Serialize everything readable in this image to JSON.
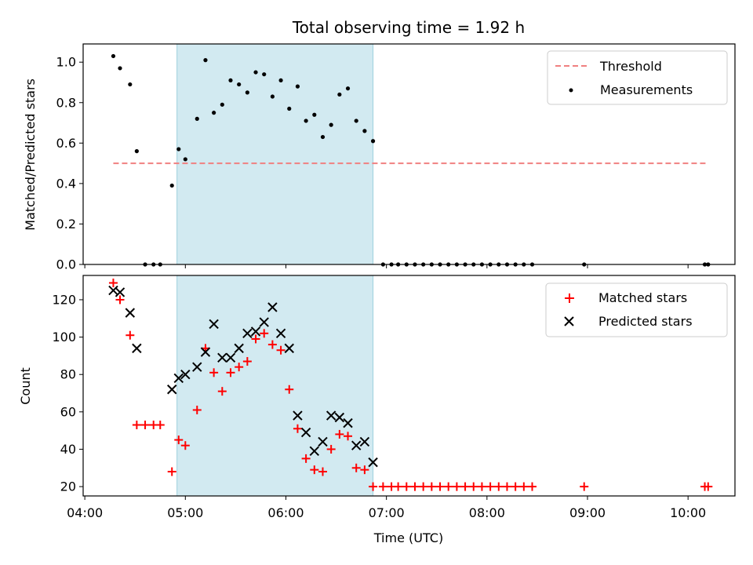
{
  "chart_data": [
    {
      "type": "scatter",
      "panel": "top",
      "title": "Total observing time = 1.92 h",
      "xlabel": "",
      "ylabel": "Matched/Predicted stars",
      "ylim": [
        0,
        1.09
      ],
      "yticks": [
        "0.0",
        "0.2",
        "0.4",
        "0.6",
        "0.8",
        "1.0"
      ],
      "shaded_span": [
        "04:55",
        "06:52"
      ],
      "threshold": {
        "name": "Threshold",
        "value": 0.5,
        "x_start": "04:17",
        "x_end": "10:12",
        "color": "#f08080"
      },
      "series": [
        {
          "name": "Measurements",
          "marker": "dot",
          "color": "#000000",
          "points": [
            [
              "04:17",
              1.03
            ],
            [
              "04:21",
              0.97
            ],
            [
              "04:27",
              0.89
            ],
            [
              "04:31",
              0.56
            ],
            [
              "04:36",
              0.0
            ],
            [
              "04:41",
              0.0
            ],
            [
              "04:45",
              0.0
            ],
            [
              "04:52",
              0.39
            ],
            [
              "04:56",
              0.57
            ],
            [
              "05:00",
              0.52
            ],
            [
              "05:07",
              0.72
            ],
            [
              "05:12",
              1.01
            ],
            [
              "05:17",
              0.75
            ],
            [
              "05:22",
              0.79
            ],
            [
              "05:27",
              0.91
            ],
            [
              "05:32",
              0.89
            ],
            [
              "05:37",
              0.85
            ],
            [
              "05:42",
              0.95
            ],
            [
              "05:47",
              0.94
            ],
            [
              "05:52",
              0.83
            ],
            [
              "05:57",
              0.91
            ],
            [
              "06:02",
              0.77
            ],
            [
              "06:07",
              0.88
            ],
            [
              "06:12",
              0.71
            ],
            [
              "06:17",
              0.74
            ],
            [
              "06:22",
              0.63
            ],
            [
              "06:27",
              0.69
            ],
            [
              "06:32",
              0.84
            ],
            [
              "06:37",
              0.87
            ],
            [
              "06:42",
              0.71
            ],
            [
              "06:47",
              0.66
            ],
            [
              "06:52",
              0.61
            ],
            [
              "06:58",
              0.0
            ],
            [
              "07:03",
              0.0
            ],
            [
              "07:07",
              0.0
            ],
            [
              "07:12",
              0.0
            ],
            [
              "07:17",
              0.0
            ],
            [
              "07:22",
              0.0
            ],
            [
              "07:27",
              0.0
            ],
            [
              "07:32",
              0.0
            ],
            [
              "07:37",
              0.0
            ],
            [
              "07:42",
              0.0
            ],
            [
              "07:47",
              0.0
            ],
            [
              "07:52",
              0.0
            ],
            [
              "07:57",
              0.0
            ],
            [
              "08:02",
              0.0
            ],
            [
              "08:07",
              0.0
            ],
            [
              "08:12",
              0.0
            ],
            [
              "08:17",
              0.0
            ],
            [
              "08:22",
              0.0
            ],
            [
              "08:27",
              0.0
            ],
            [
              "08:58",
              0.0
            ],
            [
              "10:10",
              0.0
            ],
            [
              "10:12",
              0.0
            ]
          ]
        }
      ],
      "legend": {
        "position": "upper right",
        "entries": [
          "Threshold",
          "Measurements"
        ]
      }
    },
    {
      "type": "scatter",
      "panel": "bottom",
      "title": "",
      "xlabel": "Time (UTC)",
      "ylabel": "Count",
      "ylim": [
        15,
        133
      ],
      "yticks": [
        "20",
        "40",
        "60",
        "80",
        "100",
        "120"
      ],
      "xticks": [
        "04:00",
        "05:00",
        "06:00",
        "07:00",
        "08:00",
        "09:00",
        "10:00"
      ],
      "xlim": [
        "03:59",
        "10:28"
      ],
      "shaded_span": [
        "04:55",
        "06:52"
      ],
      "series": [
        {
          "name": "Matched stars",
          "marker": "plus",
          "color": "#ff0000",
          "points": [
            [
              "04:17",
              129
            ],
            [
              "04:21",
              120
            ],
            [
              "04:27",
              101
            ],
            [
              "04:31",
              53
            ],
            [
              "04:36",
              53
            ],
            [
              "04:41",
              53
            ],
            [
              "04:45",
              53
            ],
            [
              "04:52",
              28
            ],
            [
              "04:56",
              45
            ],
            [
              "05:00",
              42
            ],
            [
              "05:07",
              61
            ],
            [
              "05:12",
              94
            ],
            [
              "05:17",
              81
            ],
            [
              "05:22",
              71
            ],
            [
              "05:27",
              81
            ],
            [
              "05:32",
              84
            ],
            [
              "05:37",
              87
            ],
            [
              "05:42",
              99
            ],
            [
              "05:47",
              102
            ],
            [
              "05:52",
              96
            ],
            [
              "05:57",
              93
            ],
            [
              "06:02",
              72
            ],
            [
              "06:07",
              51
            ],
            [
              "06:12",
              35
            ],
            [
              "06:17",
              29
            ],
            [
              "06:22",
              28
            ],
            [
              "06:27",
              40
            ],
            [
              "06:32",
              48
            ],
            [
              "06:37",
              47
            ],
            [
              "06:42",
              30
            ],
            [
              "06:47",
              29
            ],
            [
              "06:52",
              20
            ],
            [
              "06:58",
              20
            ],
            [
              "07:03",
              20
            ],
            [
              "07:07",
              20
            ],
            [
              "07:12",
              20
            ],
            [
              "07:17",
              20
            ],
            [
              "07:22",
              20
            ],
            [
              "07:27",
              20
            ],
            [
              "07:32",
              20
            ],
            [
              "07:37",
              20
            ],
            [
              "07:42",
              20
            ],
            [
              "07:47",
              20
            ],
            [
              "07:52",
              20
            ],
            [
              "07:57",
              20
            ],
            [
              "08:02",
              20
            ],
            [
              "08:07",
              20
            ],
            [
              "08:12",
              20
            ],
            [
              "08:17",
              20
            ],
            [
              "08:22",
              20
            ],
            [
              "08:27",
              20
            ],
            [
              "08:58",
              20
            ],
            [
              "10:10",
              20
            ],
            [
              "10:12",
              20
            ]
          ]
        },
        {
          "name": "Predicted stars",
          "marker": "x",
          "color": "#000000",
          "points": [
            [
              "04:17",
              125
            ],
            [
              "04:21",
              124
            ],
            [
              "04:27",
              113
            ],
            [
              "04:31",
              94
            ],
            [
              "04:52",
              72
            ],
            [
              "04:56",
              78
            ],
            [
              "05:00",
              80
            ],
            [
              "05:07",
              84
            ],
            [
              "05:12",
              92
            ],
            [
              "05:17",
              107
            ],
            [
              "05:22",
              89
            ],
            [
              "05:27",
              89
            ],
            [
              "05:32",
              94
            ],
            [
              "05:37",
              102
            ],
            [
              "05:42",
              103
            ],
            [
              "05:47",
              108
            ],
            [
              "05:52",
              116
            ],
            [
              "05:57",
              102
            ],
            [
              "06:02",
              94
            ],
            [
              "06:07",
              58
            ],
            [
              "06:12",
              49
            ],
            [
              "06:17",
              39
            ],
            [
              "06:22",
              44
            ],
            [
              "06:27",
              58
            ],
            [
              "06:32",
              57
            ],
            [
              "06:37",
              54
            ],
            [
              "06:42",
              42
            ],
            [
              "06:47",
              44
            ],
            [
              "06:52",
              33
            ]
          ]
        }
      ],
      "legend": {
        "position": "upper right",
        "entries": [
          "Matched stars",
          "Predicted stars"
        ]
      }
    }
  ],
  "colors": {
    "shade": "#add8e6",
    "threshold": "#f08080",
    "matched": "#ff0000",
    "predicted": "#000000",
    "measurement": "#000000"
  }
}
